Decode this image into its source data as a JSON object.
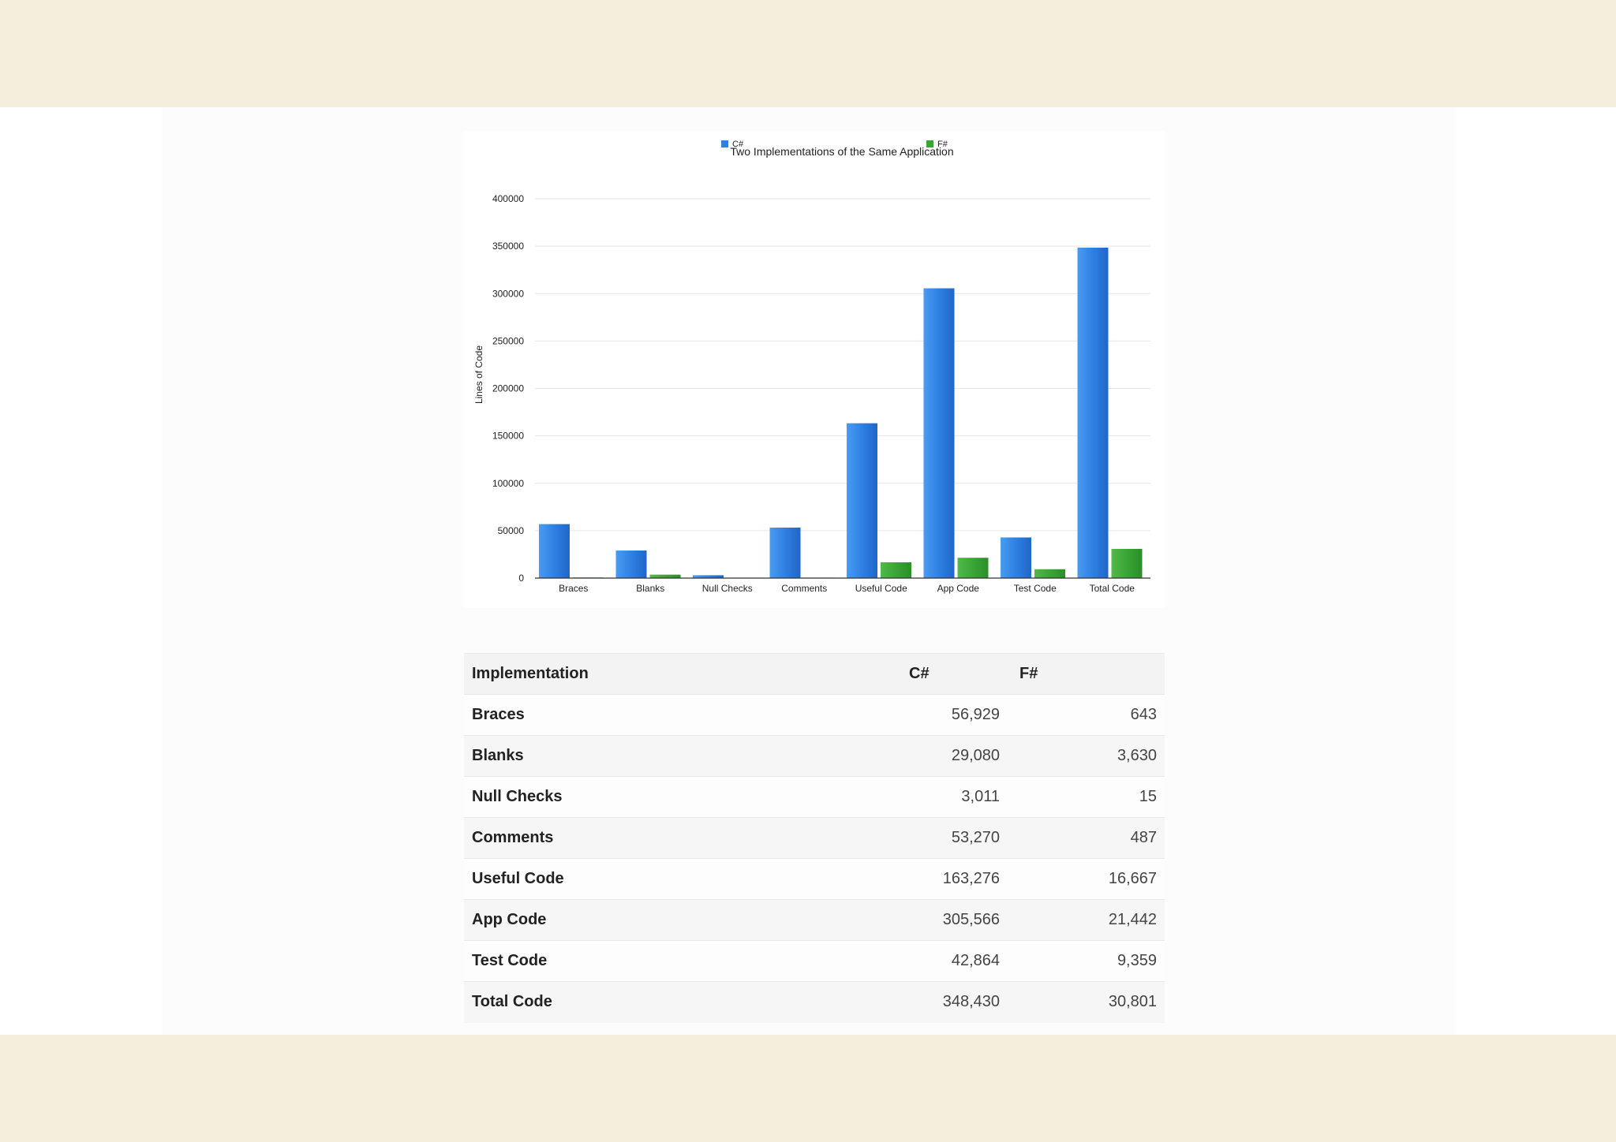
{
  "chart_data": {
    "type": "bar",
    "title": "Two Implementations of the Same Application",
    "ylabel": "Lines of Code",
    "xlabel": "",
    "categories": [
      "Braces",
      "Blanks",
      "Null Checks",
      "Comments",
      "Useful Code",
      "App Code",
      "Test Code",
      "Total Code"
    ],
    "series": [
      {
        "name": "C#",
        "values": [
          56929,
          29080,
          3011,
          53270,
          163276,
          305566,
          42864,
          348430
        ]
      },
      {
        "name": "F#",
        "values": [
          643,
          3630,
          15,
          487,
          16667,
          21442,
          9359,
          30801
        ]
      }
    ],
    "ylim": [
      0,
      400000
    ],
    "yticks": [
      "0",
      "50000",
      "100000",
      "150000",
      "200000",
      "250000",
      "300000",
      "350000",
      "400000"
    ],
    "grid": true,
    "legend": "top",
    "colors": {
      "C#": "#2f7fe0",
      "F#": "#3ea83a"
    }
  },
  "table": {
    "headers": [
      "Implementation",
      "C#",
      "F#"
    ],
    "rows": [
      {
        "label": "Braces",
        "cs": "56,929",
        "fs": "643"
      },
      {
        "label": "Blanks",
        "cs": "29,080",
        "fs": "3,630"
      },
      {
        "label": "Null Checks",
        "cs": "3,011",
        "fs": "15"
      },
      {
        "label": "Comments",
        "cs": "53,270",
        "fs": "487"
      },
      {
        "label": "Useful Code",
        "cs": "163,276",
        "fs": "16,667"
      },
      {
        "label": "App Code",
        "cs": "305,566",
        "fs": "21,442"
      },
      {
        "label": "Test Code",
        "cs": "42,864",
        "fs": "9,359"
      },
      {
        "label": "Total Code",
        "cs": "348,430",
        "fs": "30,801"
      }
    ]
  }
}
